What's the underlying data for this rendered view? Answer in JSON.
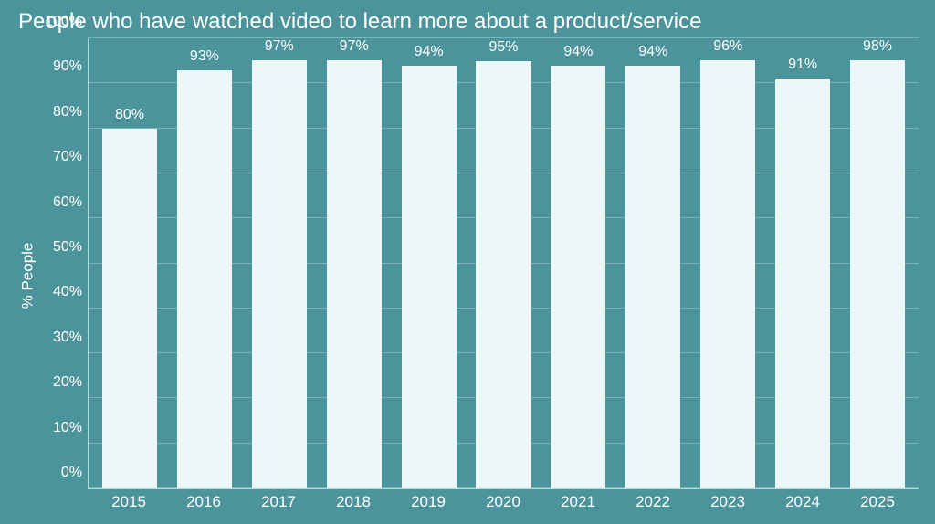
{
  "chart": {
    "type": "bar",
    "title": "People who have watched video to learn more about a product/service",
    "title_fontsize": 24,
    "title_color": "#ffffff",
    "background_color": "#4b949c",
    "bar_color": "#eef7f7",
    "axis_color": "#b7d8db",
    "grid_color": "#79b2b8",
    "text_color": "#ffffff",
    "ylabel": "% People",
    "label_fontsize": 17,
    "tick_fontsize": 16,
    "data_label_fontsize": 16,
    "ylim": [
      0,
      100
    ],
    "ytick_step": 10,
    "yticks": [
      "0%",
      "10%",
      "20%",
      "30%",
      "40%",
      "50%",
      "60%",
      "70%",
      "80%",
      "90%",
      "100%"
    ],
    "categories": [
      "2015",
      "2016",
      "2017",
      "2018",
      "2019",
      "2020",
      "2021",
      "2022",
      "2023",
      "2024",
      "2025"
    ],
    "values": [
      80,
      93,
      97,
      97,
      94,
      95,
      94,
      94,
      96,
      91,
      98
    ],
    "value_labels": [
      "80%",
      "93%",
      "97%",
      "97%",
      "94%",
      "95%",
      "94%",
      "94%",
      "96%",
      "91%",
      "98%"
    ],
    "bar_width_ratio": 0.86
  }
}
